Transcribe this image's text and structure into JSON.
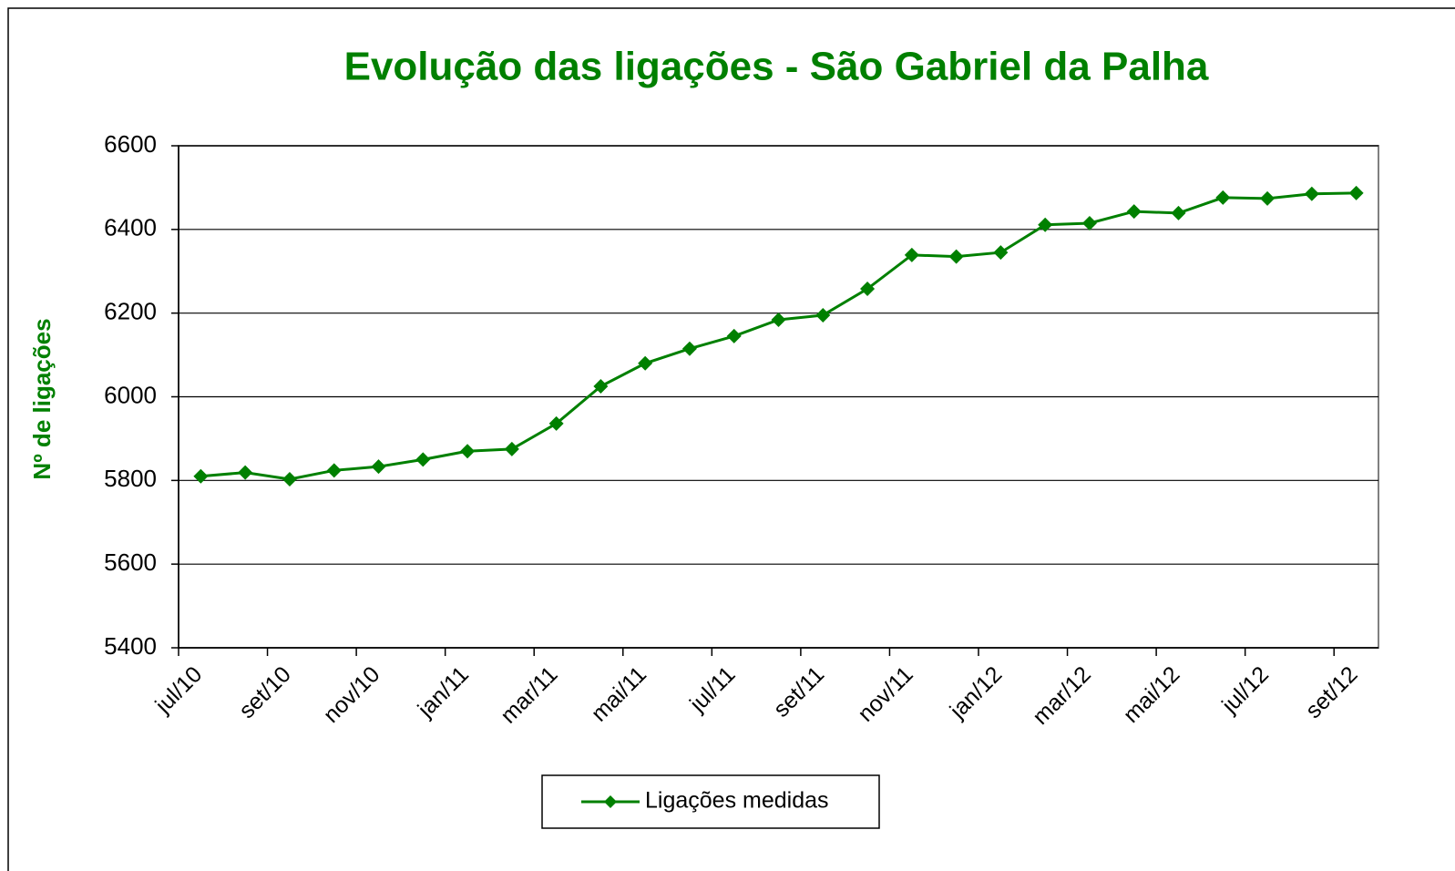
{
  "chart_data": {
    "type": "line",
    "title": "Evolução das ligações  - São Gabriel da Palha",
    "y_label": "Nº de ligações",
    "categories": [
      "jul/10",
      null,
      "set/10",
      null,
      "nov/10",
      null,
      "jan/11",
      null,
      "mar/11",
      null,
      "mai/11",
      null,
      "jul/11",
      null,
      "set/11",
      null,
      "nov/11",
      null,
      "jan/12",
      null,
      "mar/12",
      null,
      "mai/12",
      null,
      "jul/12",
      null,
      "set/12"
    ],
    "series": [
      {
        "name": "Ligações medidas",
        "color": "#008000",
        "values": [
          5810,
          5819,
          5803,
          5824,
          5833,
          5850,
          5870,
          5875,
          5936,
          6025,
          6080,
          6115,
          6145,
          6184,
          6195,
          6258,
          6339,
          6335,
          6345,
          6411,
          6415,
          6443,
          6439,
          6476,
          6474,
          6485,
          6487
        ]
      }
    ],
    "ylim": [
      5400,
      6600
    ],
    "yticks": [
      5400,
      5600,
      5800,
      6000,
      6200,
      6400,
      6600
    ],
    "grid": true,
    "legend": "bottom"
  }
}
